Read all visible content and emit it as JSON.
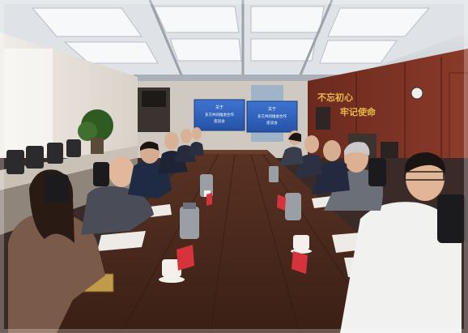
{
  "photo": {
    "description_visible_text": {
      "wall_slogan_line1": "不忘初心",
      "wall_slogan_line2": "牢记使命",
      "screen_left_line1": "关于",
      "screen_left_line2": "多方共同推进合作",
      "screen_left_line3": "座谈会",
      "screen_right_line1": "关于",
      "screen_right_line2": "多方共同推进合作",
      "screen_right_line3": "座谈会"
    },
    "colors": {
      "wall_wood": "#7a2f22",
      "table_wood": "#4a2a1e",
      "ceiling": "#d9dde2",
      "screen_blue": "#2f5fb8",
      "carpet": "#3b2b28"
    }
  }
}
